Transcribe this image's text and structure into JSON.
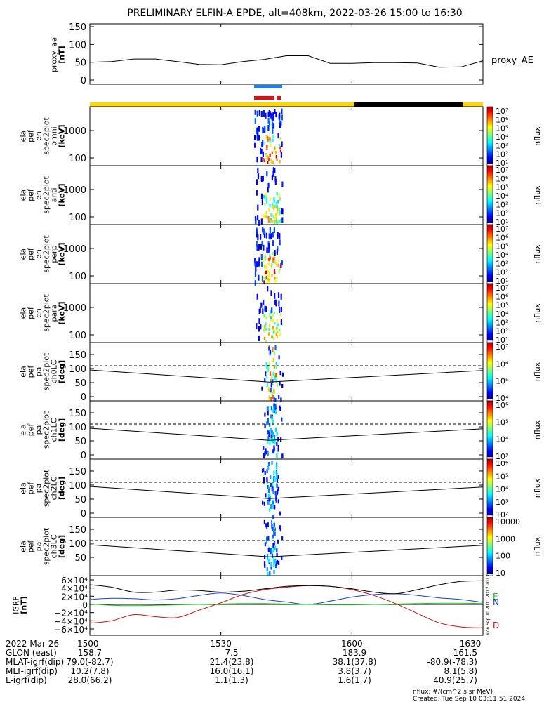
{
  "title": "PRELIMINARY ELFIN-A EPDE, alt=408km, 2022-03-26 15:00 to 16:30",
  "colors": {
    "sunlight_yellow": "#ffd700",
    "shadow_black": "#000000",
    "science_blue": "#1e7fe6",
    "science_red": "#e01010",
    "igrf_black": "#000000",
    "igrf_blue": "#1f3fd0",
    "igrf_green": "#13c813",
    "igrf_red": "#d01010",
    "zero_line": "#000000"
  },
  "panels": {
    "ae": {
      "ylabel": [
        "proxy_ae",
        "[nT]"
      ],
      "right_label": "proxy_AE",
      "yticks": [
        "150",
        "100",
        "50",
        "0"
      ]
    },
    "spec": [
      {
        "ylabel": [
          "ela",
          "pef",
          "en",
          "spec2plot",
          "omni",
          "[keV]"
        ],
        "yticks": [
          "1000",
          "100"
        ],
        "cbar": {
          "label": "nflux",
          "ticks": [
            "10⁷",
            "10⁶",
            "10⁵",
            "10⁴",
            "10³",
            "10²",
            "10¹"
          ]
        }
      },
      {
        "ylabel": [
          "ela",
          "pef",
          "en",
          "spec2plot",
          "anti",
          "[keV]"
        ],
        "yticks": [
          "1000",
          "100"
        ],
        "cbar": {
          "label": "nflux",
          "ticks": [
            "10⁷",
            "10⁶",
            "10⁵",
            "10⁴",
            "10³",
            "10²",
            "10¹"
          ]
        }
      },
      {
        "ylabel": [
          "ela",
          "pef",
          "en",
          "spec2plot",
          "perp",
          "[keV]"
        ],
        "yticks": [
          "1000",
          "100"
        ],
        "cbar": {
          "label": "nflux",
          "ticks": [
            "10⁷",
            "10⁶",
            "10⁵",
            "10⁴",
            "10³",
            "10²",
            "10¹"
          ]
        }
      },
      {
        "ylabel": [
          "ela",
          "pef",
          "en",
          "spec2plot",
          "para",
          "[keV]"
        ],
        "yticks": [
          "1000",
          "100"
        ],
        "cbar": {
          "label": "nflux",
          "ticks": [
            "10⁷",
            "10⁶",
            "10⁵",
            "10⁴",
            "10³",
            "10²",
            "10¹"
          ]
        }
      }
    ],
    "pa": [
      {
        "ylabel": [
          "ela",
          "pef",
          "pa",
          "spec2plot",
          "ch0LC",
          "[deg]"
        ],
        "yticks": [
          "150",
          "100",
          "50",
          "0"
        ],
        "cbar": {
          "label": "nflux",
          "ticks": [
            "10⁷",
            "10⁶",
            "10⁵",
            "10⁴"
          ]
        }
      },
      {
        "ylabel": [
          "ela",
          "pef",
          "pa",
          "spec2plot",
          "ch1LC",
          "[deg]"
        ],
        "yticks": [
          "150",
          "100",
          "50",
          "0"
        ],
        "cbar": {
          "label": "nflux",
          "ticks": [
            "10⁶",
            "10⁵",
            "10⁴",
            "10³"
          ]
        }
      },
      {
        "ylabel": [
          "ela",
          "pef",
          "pa",
          "spec2plot",
          "ch2LC",
          "[deg]"
        ],
        "yticks": [
          "150",
          "100",
          "50",
          "0"
        ],
        "cbar": {
          "label": "nflux",
          "ticks": [
            "10⁶",
            "10⁵",
            "10⁴",
            "10³",
            "10²"
          ]
        }
      },
      {
        "ylabel": [
          "ela",
          "pef",
          "pa",
          "spec2plot",
          "ch3LC",
          "[deg]"
        ],
        "yticks": [
          "150",
          "100",
          "50"
        ],
        "cbar": {
          "label": "nflux",
          "ticks": [
            "10000",
            "1000",
            "100",
            "10"
          ]
        }
      }
    ],
    "igrf": {
      "ylabel": [
        "IGRF",
        "[nT]"
      ],
      "yticks": [
        "6×10⁴",
        "4×10⁴",
        "2×10⁴",
        "0",
        "−2×10⁴",
        "−4×10⁴",
        "−6×10⁴"
      ],
      "legend": [
        "E",
        "N",
        "D"
      ],
      "side_text": "Mon Sep 10 2011 2012 2013"
    }
  },
  "footer": {
    "rows": [
      [
        "2022 Mar 26",
        "1500",
        "1530",
        "1600",
        "1630"
      ],
      [
        "GLON (east)",
        "158.7",
        "7.5",
        "183.9",
        "161.5"
      ],
      [
        "MLAT-igrf(dip)",
        "79.0(-82.7)",
        "21.4(23.8)",
        "38.1(37.8)",
        "-80.9(-78.3)"
      ],
      [
        "MLT-igrf(dip)",
        "10.2(7.8)",
        "16.0(16.1)",
        "3.8(3.7)",
        "8.1(5.8)"
      ],
      [
        "L-igrf(dip)",
        "28.0(66.2)",
        "1.1(1.3)",
        "1.6(1.7)",
        "40.9(25.7)"
      ]
    ],
    "note1": "nflux: #/(cm^2 s sr MeV)",
    "note2": "Created: Tue Sep 10 03:11:51 2024"
  },
  "chart_data": [
    {
      "type": "line",
      "title": "PRELIMINARY ELFIN-A EPDE, alt=408km, 2022-03-26 15:00 to 16:30",
      "ylabel": "proxy_ae [nT]",
      "series": [
        {
          "name": "proxy_AE",
          "x": [
            1500,
            1505,
            1510,
            1515,
            1520,
            1525,
            1530,
            1535,
            1540,
            1545,
            1550,
            1555,
            1600,
            1605,
            1610,
            1615,
            1620,
            1625,
            1630
          ],
          "values": [
            50,
            52,
            59,
            59,
            52,
            44,
            43,
            52,
            58,
            68,
            68,
            47,
            47,
            49,
            49,
            48,
            36,
            37,
            54
          ]
        }
      ],
      "ylim": [
        0,
        150
      ],
      "xlim": [
        1500,
        1630
      ]
    },
    {
      "type": "heatmap",
      "ylabel": "IGRF [nT]",
      "note": "4 energy spectrograms (omni, anti, perp, para) with flux between ~15:43 and ~15:50; 4 pitch-angle spectrograms ch0LC–ch3LC",
      "xlim": [
        1500,
        1630
      ]
    },
    {
      "type": "line",
      "ylabel": "IGRF [nT]",
      "ylim": [
        -60000,
        60000
      ],
      "x": [
        1500,
        1505,
        1510,
        1515,
        1520,
        1525,
        1530,
        1535,
        1540,
        1545,
        1550,
        1555,
        1600,
        1605,
        1610,
        1615,
        1620,
        1625,
        1630
      ],
      "series": [
        {
          "name": "N",
          "values": [
            12000,
            15000,
            14000,
            11000,
            14000,
            22000,
            28000,
            22000,
            12000,
            6000,
            0,
            8000,
            18000,
            24000,
            26000,
            22000,
            16000,
            12000,
            5000
          ]
        },
        {
          "name": "E",
          "values": [
            1000,
            -2000,
            -3000,
            -2000,
            -1000,
            0,
            1000,
            2000,
            2000,
            1000,
            0,
            -1000,
            -1000,
            0,
            1000,
            2000,
            3000,
            3000,
            2000
          ]
        },
        {
          "name": "D",
          "values": [
            -46000,
            -40000,
            -25000,
            -30000,
            -32000,
            -14000,
            4000,
            24000,
            36000,
            42000,
            46000,
            44000,
            36000,
            22000,
            2000,
            -22000,
            -45000,
            -55000,
            -57000
          ]
        },
        {
          "name": "F",
          "values": [
            48000,
            42000,
            30000,
            30000,
            35000,
            34000,
            30000,
            32000,
            38000,
            44000,
            46000,
            44000,
            38000,
            30000,
            26000,
            36000,
            48000,
            56000,
            58000
          ]
        }
      ]
    }
  ]
}
